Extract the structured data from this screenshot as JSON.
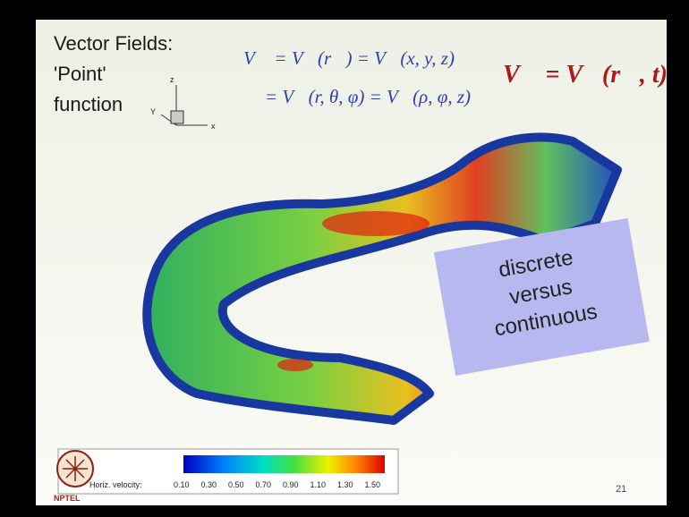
{
  "slide": {
    "title_lines": [
      "Vector Fields:",
      "'Point'",
      "function"
    ],
    "axis_labels": {
      "z": "z",
      "y": "Y",
      "x": "x"
    },
    "equations": {
      "line1": "V⃗ = V⃗(r⃗) = V⃗(x, y, z)",
      "line2": "= V⃗(r, θ, φ) = V⃗(ρ, φ, z)",
      "time": "V⃗ = V⃗(r⃗, t)"
    },
    "callout": [
      "discrete",
      "versus",
      "continuous"
    ],
    "colorbar": {
      "label": "Horiz. velocity:",
      "ticks": [
        "0.10",
        "0.30",
        "0.50",
        "0.70",
        "0.90",
        "1.10",
        "1.30",
        "1.50"
      ]
    },
    "page_number": "21",
    "logo_text": "NPTEL"
  }
}
